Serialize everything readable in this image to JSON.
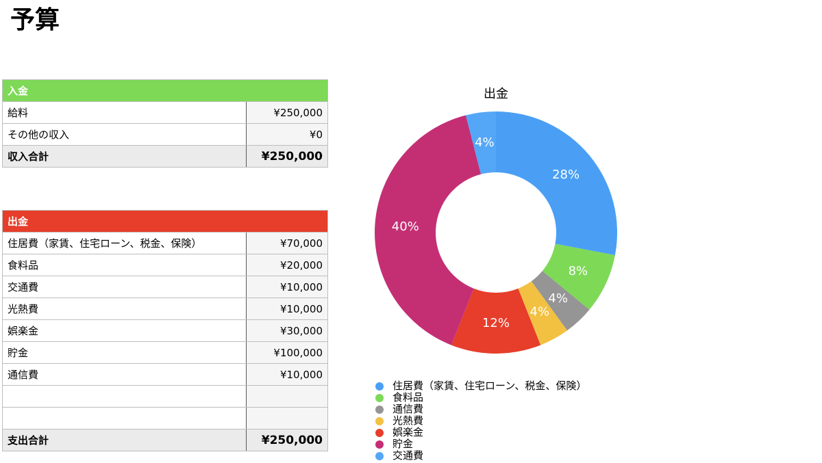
{
  "title": "予算",
  "income": {
    "header": "入金",
    "rows": [
      {
        "label": "給料",
        "amount": "¥250,000"
      },
      {
        "label": "その他の収入",
        "amount": "¥0"
      }
    ],
    "total_label": "収入合計",
    "total_amount": "¥250,000",
    "color": "#7ed957"
  },
  "expenses": {
    "header": "出金",
    "rows": [
      {
        "label": "住居費（家賃、住宅ローン、税金、保険）",
        "amount": "¥70,000"
      },
      {
        "label": "食料品",
        "amount": "¥20,000"
      },
      {
        "label": "交通費",
        "amount": "¥10,000"
      },
      {
        "label": "光熱費",
        "amount": "¥10,000"
      },
      {
        "label": "娯楽金",
        "amount": "¥30,000"
      },
      {
        "label": "貯金",
        "amount": "¥100,000"
      },
      {
        "label": "通信費",
        "amount": "¥10,000"
      },
      {
        "label": "",
        "amount": ""
      },
      {
        "label": "",
        "amount": ""
      }
    ],
    "total_label": "支出合計",
    "total_amount": "¥250,000",
    "color": "#e63e2b"
  },
  "chart_data": {
    "type": "pie",
    "title": "出金",
    "donut": true,
    "slices": [
      {
        "label": "住居費（家賃、住宅ローン、税金、保険）",
        "value": 28,
        "display": "28%",
        "color": "#4a9ff5"
      },
      {
        "label": "食料品",
        "value": 8,
        "display": "8%",
        "color": "#7ed957"
      },
      {
        "label": "通信費",
        "value": 4,
        "display": "4%",
        "color": "#959595"
      },
      {
        "label": "光熱費",
        "value": 4,
        "display": "4%",
        "color": "#f2c142"
      },
      {
        "label": "娯楽金",
        "value": 12,
        "display": "12%",
        "color": "#e63e2b"
      },
      {
        "label": "貯金",
        "value": 40,
        "display": "40%",
        "color": "#c42f74"
      },
      {
        "label": "交通費",
        "value": 4,
        "display": "4%",
        "color": "#54a7f7"
      }
    ],
    "legend_position": "bottom"
  }
}
